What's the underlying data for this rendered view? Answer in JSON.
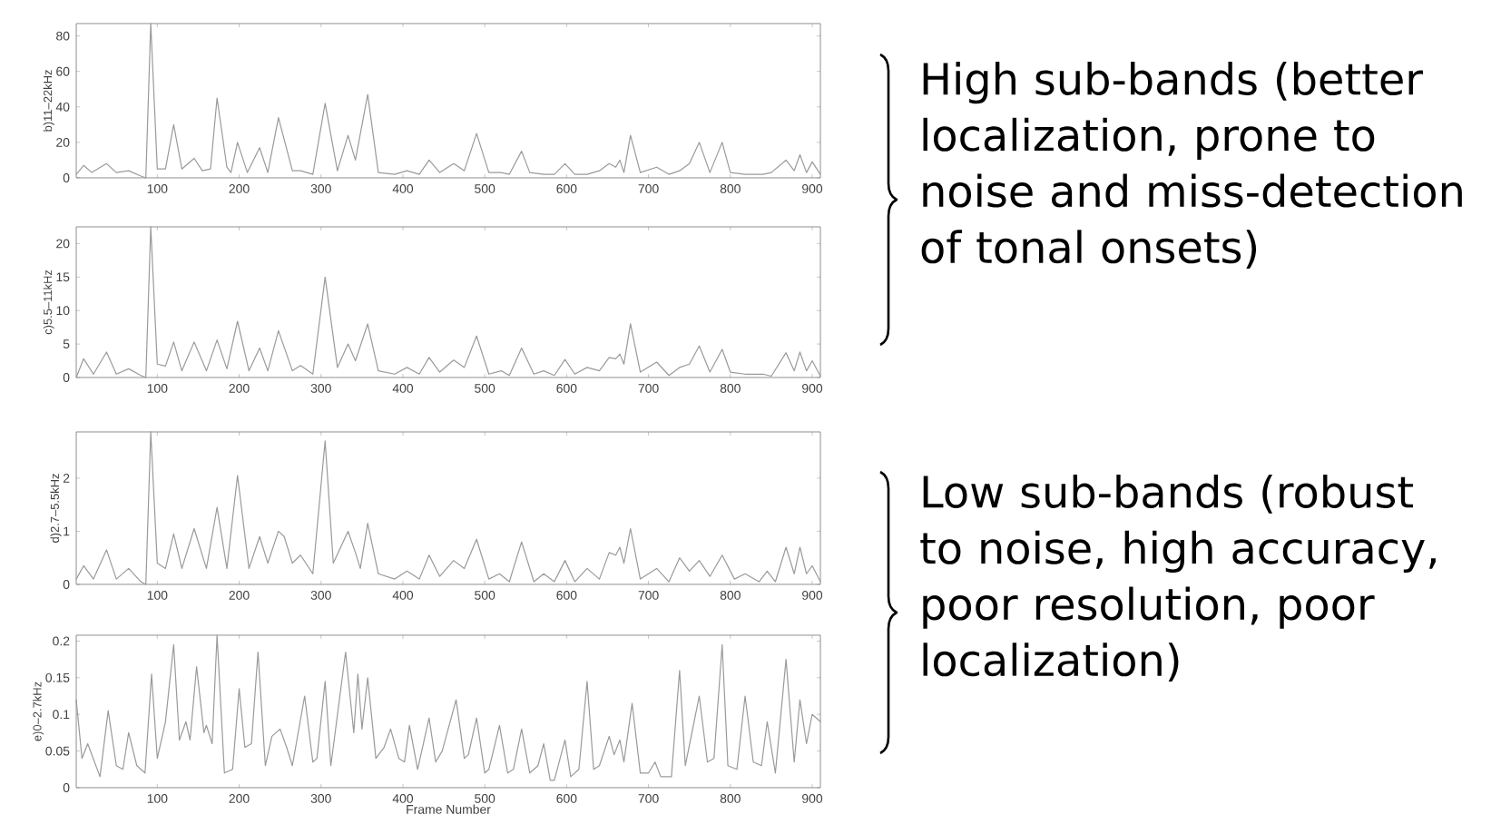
{
  "chart_data": [
    {
      "type": "line",
      "ylabel": "b)11–22kHz",
      "xlim": [
        1,
        910
      ],
      "ylim": [
        0,
        87
      ],
      "xticks": [
        100,
        200,
        300,
        400,
        500,
        600,
        700,
        800,
        900
      ],
      "yticks": [
        0,
        20,
        40,
        60,
        80
      ],
      "color": "#9a9a9a",
      "annotations": [
        "High sub-bands (better localization, prone to noise and miss-detection of tonal onsets)"
      ],
      "x": [
        1,
        10,
        20,
        38,
        50,
        65,
        80,
        86,
        92,
        100,
        110,
        120,
        130,
        145,
        155,
        165,
        173,
        185,
        190,
        198,
        210,
        225,
        235,
        248,
        265,
        275,
        290,
        305,
        320,
        333,
        342,
        357,
        370,
        390,
        405,
        420,
        432,
        445,
        462,
        475,
        490,
        505,
        520,
        530,
        545,
        555,
        572,
        585,
        598,
        610,
        625,
        640,
        652,
        660,
        665,
        670,
        678,
        690,
        710,
        725,
        738,
        750,
        762,
        775,
        790,
        800,
        818,
        840,
        850,
        868,
        878,
        885,
        893,
        900,
        910
      ],
      "values": [
        2,
        7,
        3,
        8,
        3,
        4,
        1,
        0,
        87,
        5,
        5,
        30,
        5,
        11,
        4,
        5,
        45,
        6,
        3,
        20,
        3,
        17,
        3,
        34,
        4,
        4,
        2,
        42,
        4,
        24,
        10,
        47,
        3,
        2,
        4,
        2,
        10,
        3,
        8,
        4,
        25,
        3,
        3,
        2,
        15,
        3,
        2,
        2,
        8,
        2,
        2,
        4,
        8,
        6,
        10,
        3,
        24,
        3,
        6,
        2,
        4,
        8,
        20,
        3,
        20,
        3,
        2,
        2,
        3,
        10,
        4,
        13,
        3,
        9,
        2
      ]
    },
    {
      "type": "line",
      "ylabel": "c)5.5–11kHz",
      "xlim": [
        1,
        910
      ],
      "ylim": [
        0,
        22.5
      ],
      "xticks": [
        100,
        200,
        300,
        400,
        500,
        600,
        700,
        800,
        900
      ],
      "yticks": [
        0,
        5,
        10,
        15,
        20
      ],
      "color": "#9a9a9a",
      "x": [
        1,
        10,
        22,
        38,
        50,
        65,
        80,
        86,
        92,
        100,
        110,
        120,
        130,
        145,
        160,
        173,
        185,
        198,
        212,
        225,
        235,
        248,
        265,
        275,
        290,
        305,
        320,
        333,
        342,
        357,
        370,
        390,
        405,
        420,
        432,
        445,
        462,
        475,
        490,
        505,
        520,
        530,
        545,
        560,
        572,
        585,
        598,
        610,
        625,
        640,
        652,
        660,
        665,
        670,
        678,
        690,
        710,
        725,
        738,
        750,
        762,
        775,
        790,
        800,
        818,
        840,
        850,
        868,
        878,
        885,
        893,
        900,
        910
      ],
      "values": [
        0,
        2.8,
        0.5,
        3.8,
        0.5,
        1.3,
        0.3,
        0,
        22.5,
        2,
        1.7,
        5.3,
        1,
        5.3,
        1,
        5.6,
        1.3,
        8.4,
        1,
        4.4,
        1,
        7,
        1,
        1.8,
        0.5,
        15,
        1.5,
        5,
        2.5,
        8,
        1,
        0.5,
        1.5,
        0.5,
        3,
        0.8,
        2.6,
        1.5,
        6.2,
        0.5,
        1,
        0.3,
        4.4,
        0.5,
        1,
        0.3,
        2.7,
        0.5,
        1.5,
        1,
        3,
        2.8,
        3.5,
        2,
        8,
        0.8,
        2.3,
        0.3,
        1.5,
        2,
        4.7,
        0.8,
        4.2,
        0.8,
        0.5,
        0.5,
        0.2,
        3.7,
        1,
        3.8,
        1,
        2.5,
        0.2
      ]
    },
    {
      "type": "line",
      "ylabel": "d)2.7–5.5kHz",
      "xlim": [
        1,
        910
      ],
      "ylim": [
        0,
        2.87
      ],
      "xticks": [
        100,
        200,
        300,
        400,
        500,
        600,
        700,
        800,
        900
      ],
      "yticks": [
        0,
        1,
        2
      ],
      "color": "#9a9a9a",
      "annotations": [
        "Low sub-bands (robust to noise, high accuracy, poor resolution, poor localization)"
      ],
      "x": [
        1,
        10,
        22,
        38,
        50,
        65,
        80,
        86,
        92,
        100,
        110,
        120,
        130,
        145,
        160,
        173,
        185,
        198,
        212,
        225,
        235,
        248,
        255,
        265,
        275,
        290,
        305,
        315,
        333,
        342,
        348,
        357,
        370,
        390,
        405,
        420,
        432,
        445,
        462,
        475,
        490,
        505,
        518,
        530,
        545,
        560,
        572,
        585,
        598,
        610,
        625,
        640,
        652,
        660,
        665,
        670,
        678,
        690,
        710,
        725,
        738,
        750,
        762,
        775,
        790,
        805,
        818,
        835,
        845,
        855,
        868,
        878,
        885,
        893,
        900,
        910
      ],
      "values": [
        0.1,
        0.35,
        0.1,
        0.65,
        0.1,
        0.3,
        0.05,
        0,
        2.87,
        0.4,
        0.3,
        0.95,
        0.3,
        1.05,
        0.3,
        1.45,
        0.3,
        2.05,
        0.3,
        0.9,
        0.4,
        1.0,
        0.9,
        0.4,
        0.55,
        0.2,
        2.7,
        0.4,
        1.0,
        0.6,
        0.3,
        1.15,
        0.2,
        0.1,
        0.25,
        0.1,
        0.55,
        0.15,
        0.45,
        0.3,
        0.85,
        0.1,
        0.2,
        0.05,
        0.8,
        0.05,
        0.2,
        0.05,
        0.45,
        0.05,
        0.3,
        0.1,
        0.6,
        0.55,
        0.7,
        0.4,
        1.05,
        0.1,
        0.3,
        0.05,
        0.5,
        0.25,
        0.45,
        0.15,
        0.55,
        0.1,
        0.2,
        0.05,
        0.25,
        0.05,
        0.7,
        0.2,
        0.7,
        0.2,
        0.35,
        0.05
      ]
    },
    {
      "type": "line",
      "ylabel": "e)0–2.7kHz",
      "xlabel": "Frame Number",
      "xlim": [
        1,
        910
      ],
      "ylim": [
        0,
        0.208
      ],
      "xticks": [
        100,
        200,
        300,
        400,
        500,
        600,
        700,
        800,
        900
      ],
      "yticks": [
        0,
        0.05,
        0.1,
        0.15,
        0.2
      ],
      "color": "#9a9a9a",
      "x": [
        1,
        8,
        15,
        30,
        40,
        50,
        58,
        65,
        75,
        85,
        93,
        100,
        110,
        120,
        127,
        135,
        140,
        148,
        157,
        160,
        167,
        173,
        182,
        192,
        200,
        207,
        215,
        223,
        232,
        240,
        250,
        258,
        265,
        280,
        290,
        295,
        305,
        312,
        330,
        340,
        345,
        350,
        357,
        367,
        377,
        385,
        395,
        402,
        408,
        418,
        432,
        440,
        448,
        465,
        475,
        480,
        490,
        500,
        505,
        518,
        528,
        535,
        545,
        555,
        565,
        572,
        580,
        585,
        598,
        605,
        615,
        625,
        633,
        640,
        652,
        658,
        665,
        670,
        680,
        690,
        700,
        708,
        715,
        728,
        738,
        745,
        762,
        772,
        780,
        790,
        797,
        808,
        818,
        828,
        838,
        845,
        855,
        868,
        878,
        885,
        893,
        900,
        910
      ],
      "values": [
        0.12,
        0.04,
        0.06,
        0.015,
        0.105,
        0.03,
        0.025,
        0.075,
        0.03,
        0.02,
        0.155,
        0.04,
        0.09,
        0.195,
        0.065,
        0.09,
        0.065,
        0.165,
        0.075,
        0.085,
        0.06,
        0.208,
        0.02,
        0.025,
        0.135,
        0.055,
        0.06,
        0.185,
        0.03,
        0.07,
        0.08,
        0.055,
        0.03,
        0.125,
        0.035,
        0.04,
        0.145,
        0.03,
        0.185,
        0.075,
        0.155,
        0.08,
        0.15,
        0.04,
        0.055,
        0.08,
        0.04,
        0.035,
        0.085,
        0.025,
        0.095,
        0.035,
        0.05,
        0.12,
        0.04,
        0.045,
        0.095,
        0.02,
        0.025,
        0.085,
        0.02,
        0.025,
        0.08,
        0.02,
        0.03,
        0.06,
        0.01,
        0.01,
        0.065,
        0.015,
        0.025,
        0.145,
        0.025,
        0.03,
        0.07,
        0.045,
        0.065,
        0.035,
        0.115,
        0.02,
        0.02,
        0.035,
        0.015,
        0.015,
        0.16,
        0.03,
        0.125,
        0.035,
        0.04,
        0.195,
        0.03,
        0.025,
        0.125,
        0.035,
        0.03,
        0.09,
        0.02,
        0.175,
        0.035,
        0.12,
        0.06,
        0.1,
        0.09
      ]
    }
  ]
}
